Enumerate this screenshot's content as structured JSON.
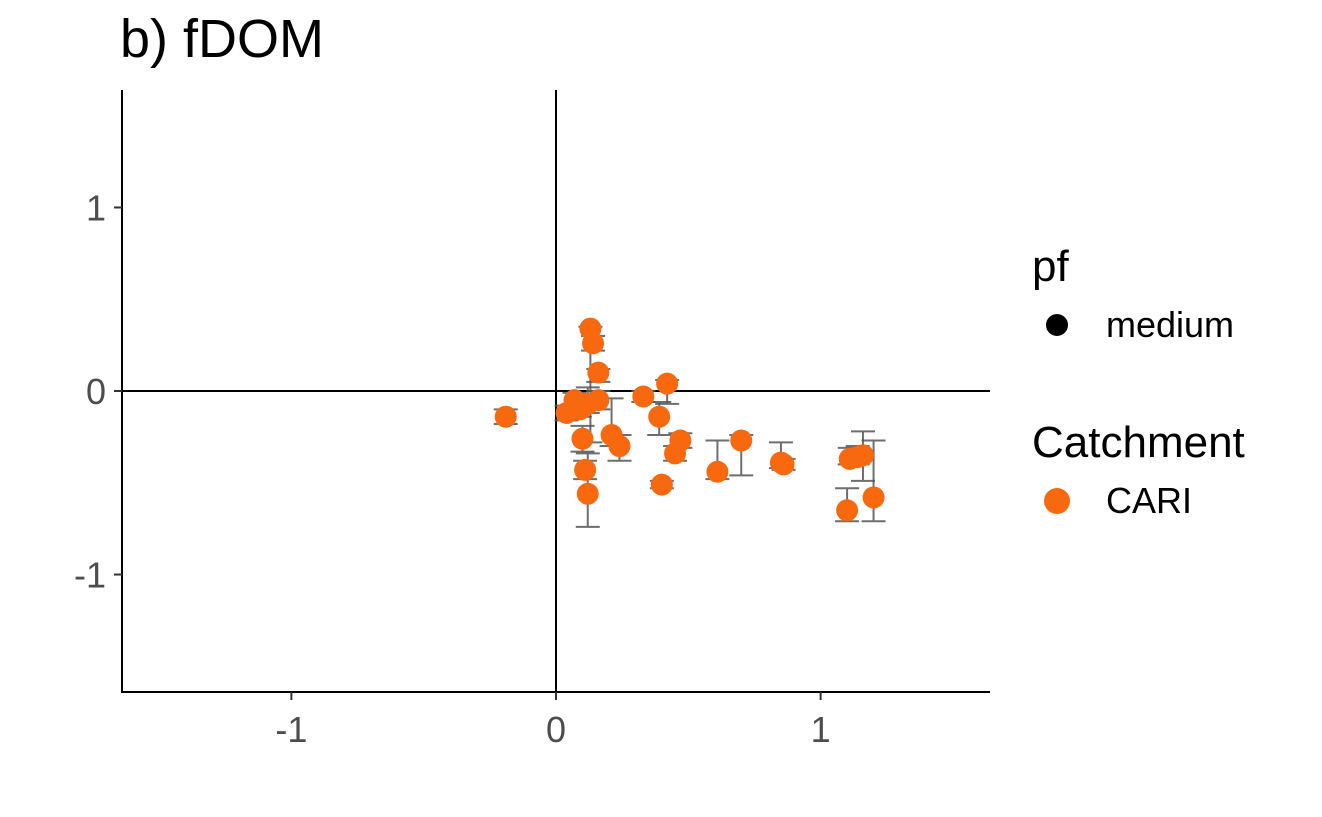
{
  "chart_data": {
    "type": "scatter",
    "title": "b) fDOM",
    "xlabel": "",
    "ylabel": "",
    "xlim": [
      -1.64,
      1.64
    ],
    "ylim": [
      -1.64,
      1.64
    ],
    "x_ticks": [
      -1,
      0,
      1
    ],
    "y_ticks": [
      1,
      0,
      -1
    ],
    "x_tick_labels": [
      "-1",
      "0",
      "1"
    ],
    "y_tick_labels": [
      "1",
      "0",
      "-1"
    ],
    "reference_lines": {
      "x": 0,
      "y": 0
    },
    "grid": false,
    "legend_position": "right",
    "legends": [
      {
        "title": "pf",
        "entries": [
          {
            "label": "medium",
            "color": "#000000"
          }
        ]
      },
      {
        "title": "Catchment",
        "entries": [
          {
            "label": "CARI",
            "color": "#F8690F"
          }
        ]
      }
    ],
    "point_color": "#F8690F",
    "errorbar_color": "#555555",
    "points": [
      {
        "x": -0.19,
        "y": -0.14,
        "ylo": -0.18,
        "yhi": -0.1
      },
      {
        "x": 0.04,
        "y": -0.12,
        "ylo": -0.16,
        "yhi": -0.08
      },
      {
        "x": 0.07,
        "y": -0.05,
        "ylo": -0.09,
        "yhi": -0.01
      },
      {
        "x": 0.09,
        "y": -0.1,
        "ylo": -0.14,
        "yhi": -0.06
      },
      {
        "x": 0.1,
        "y": -0.26,
        "ylo": -0.33,
        "yhi": -0.19
      },
      {
        "x": 0.11,
        "y": -0.43,
        "ylo": -0.48,
        "yhi": -0.38
      },
      {
        "x": 0.12,
        "y": -0.56,
        "ylo": -0.74,
        "yhi": -0.34
      },
      {
        "x": 0.12,
        "y": -0.07,
        "ylo": -0.12,
        "yhi": 0.02
      },
      {
        "x": 0.13,
        "y": 0.34,
        "ylo": -0.28,
        "yhi": 0.35
      },
      {
        "x": 0.14,
        "y": 0.26,
        "ylo": 0.22,
        "yhi": 0.3
      },
      {
        "x": 0.16,
        "y": 0.1,
        "ylo": 0.05,
        "yhi": 0.12
      },
      {
        "x": 0.16,
        "y": -0.05,
        "ylo": -0.1,
        "yhi": 0.0
      },
      {
        "x": 0.21,
        "y": -0.24,
        "ylo": -0.3,
        "yhi": -0.04
      },
      {
        "x": 0.24,
        "y": -0.3,
        "ylo": -0.38,
        "yhi": -0.24
      },
      {
        "x": 0.33,
        "y": -0.03,
        "ylo": -0.06,
        "yhi": 0.0
      },
      {
        "x": 0.39,
        "y": -0.14,
        "ylo": -0.24,
        "yhi": -0.06
      },
      {
        "x": 0.4,
        "y": -0.51,
        "ylo": -0.53,
        "yhi": -0.49
      },
      {
        "x": 0.42,
        "y": 0.04,
        "ylo": -0.07,
        "yhi": 0.06
      },
      {
        "x": 0.45,
        "y": -0.34,
        "ylo": -0.38,
        "yhi": -0.3
      },
      {
        "x": 0.47,
        "y": -0.27,
        "ylo": -0.31,
        "yhi": -0.23
      },
      {
        "x": 0.61,
        "y": -0.44,
        "ylo": -0.48,
        "yhi": -0.27
      },
      {
        "x": 0.7,
        "y": -0.27,
        "ylo": -0.46,
        "yhi": -0.24
      },
      {
        "x": 0.85,
        "y": -0.39,
        "ylo": -0.42,
        "yhi": -0.28
      },
      {
        "x": 0.86,
        "y": -0.4,
        "ylo": -0.43,
        "yhi": -0.37
      },
      {
        "x": 1.1,
        "y": -0.65,
        "ylo": -0.71,
        "yhi": -0.53
      },
      {
        "x": 1.11,
        "y": -0.37,
        "ylo": -0.4,
        "yhi": -0.31
      },
      {
        "x": 1.14,
        "y": -0.36,
        "ylo": -0.4,
        "yhi": -0.3
      },
      {
        "x": 1.16,
        "y": -0.35,
        "ylo": -0.49,
        "yhi": -0.22
      },
      {
        "x": 1.2,
        "y": -0.58,
        "ylo": -0.71,
        "yhi": -0.27
      }
    ]
  }
}
